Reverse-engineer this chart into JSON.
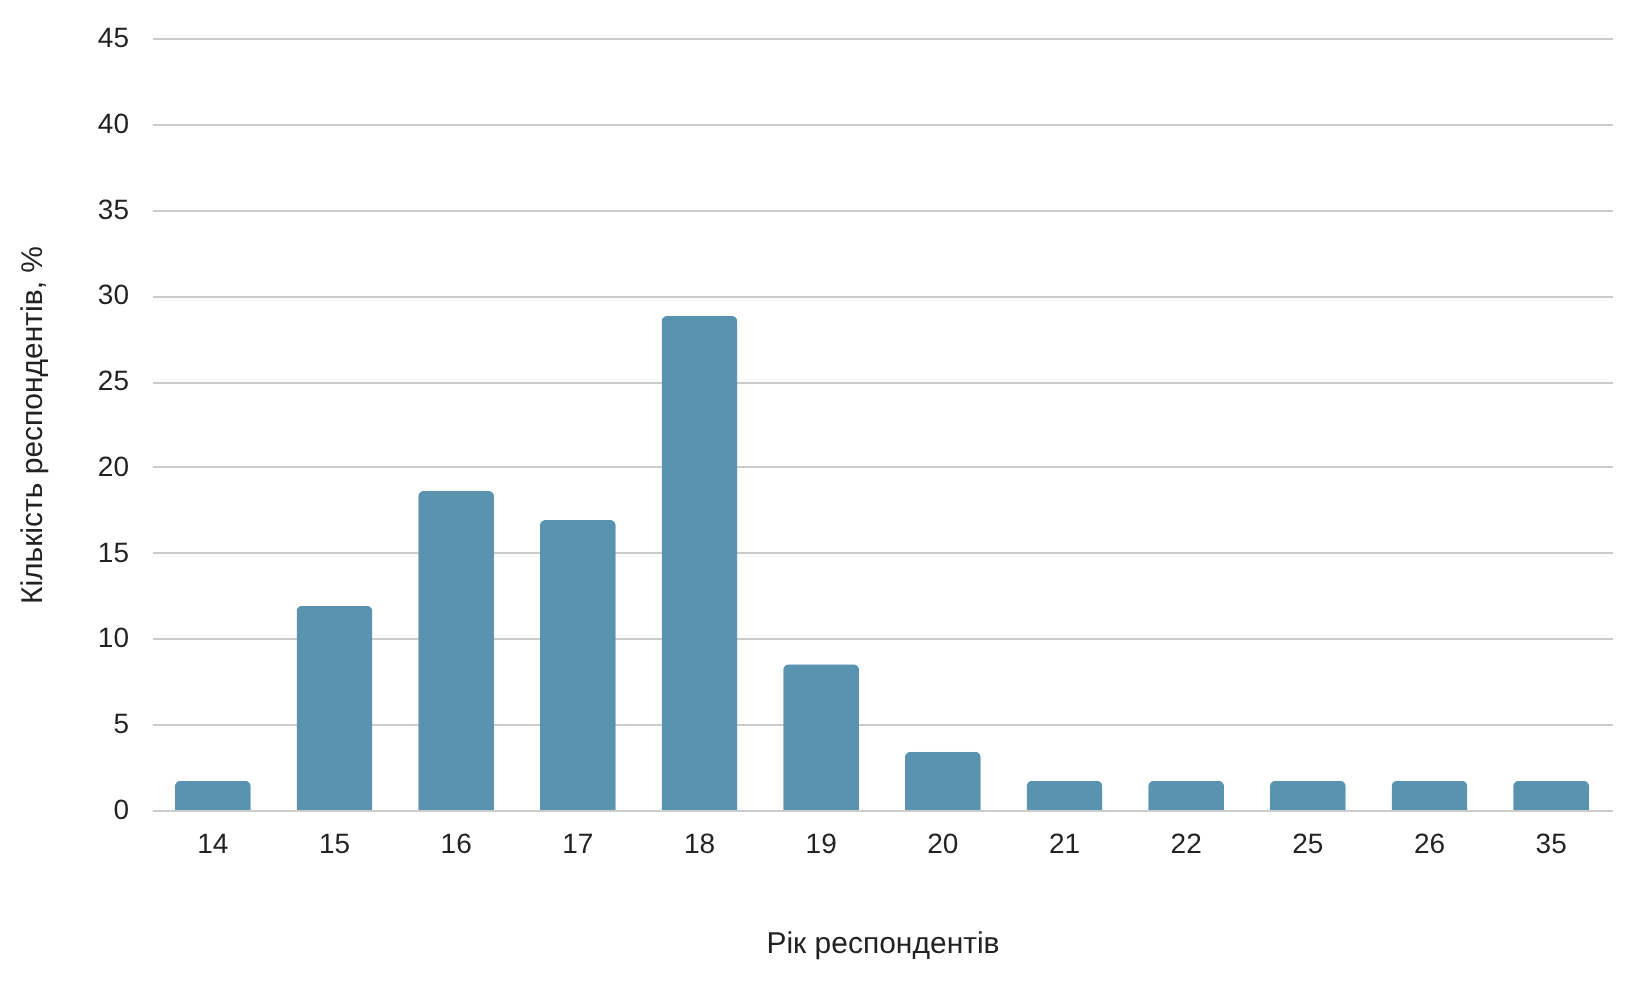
{
  "chart_data": {
    "type": "bar",
    "xlabel": "Рік респондентів",
    "ylabel": "Кількість респондентів, %",
    "categories": [
      "14",
      "15",
      "16",
      "17",
      "18",
      "19",
      "20",
      "21",
      "22",
      "25",
      "26",
      "35"
    ],
    "values": [
      1.7,
      11.9,
      18.6,
      16.9,
      28.8,
      8.5,
      3.4,
      1.7,
      1.7,
      1.7,
      1.7,
      1.7
    ],
    "color": "#5a93b0",
    "ylim": [
      0,
      45
    ],
    "yticks": [
      0,
      5,
      10,
      15,
      20,
      25,
      30,
      35,
      40,
      45
    ],
    "grid": "y"
  }
}
